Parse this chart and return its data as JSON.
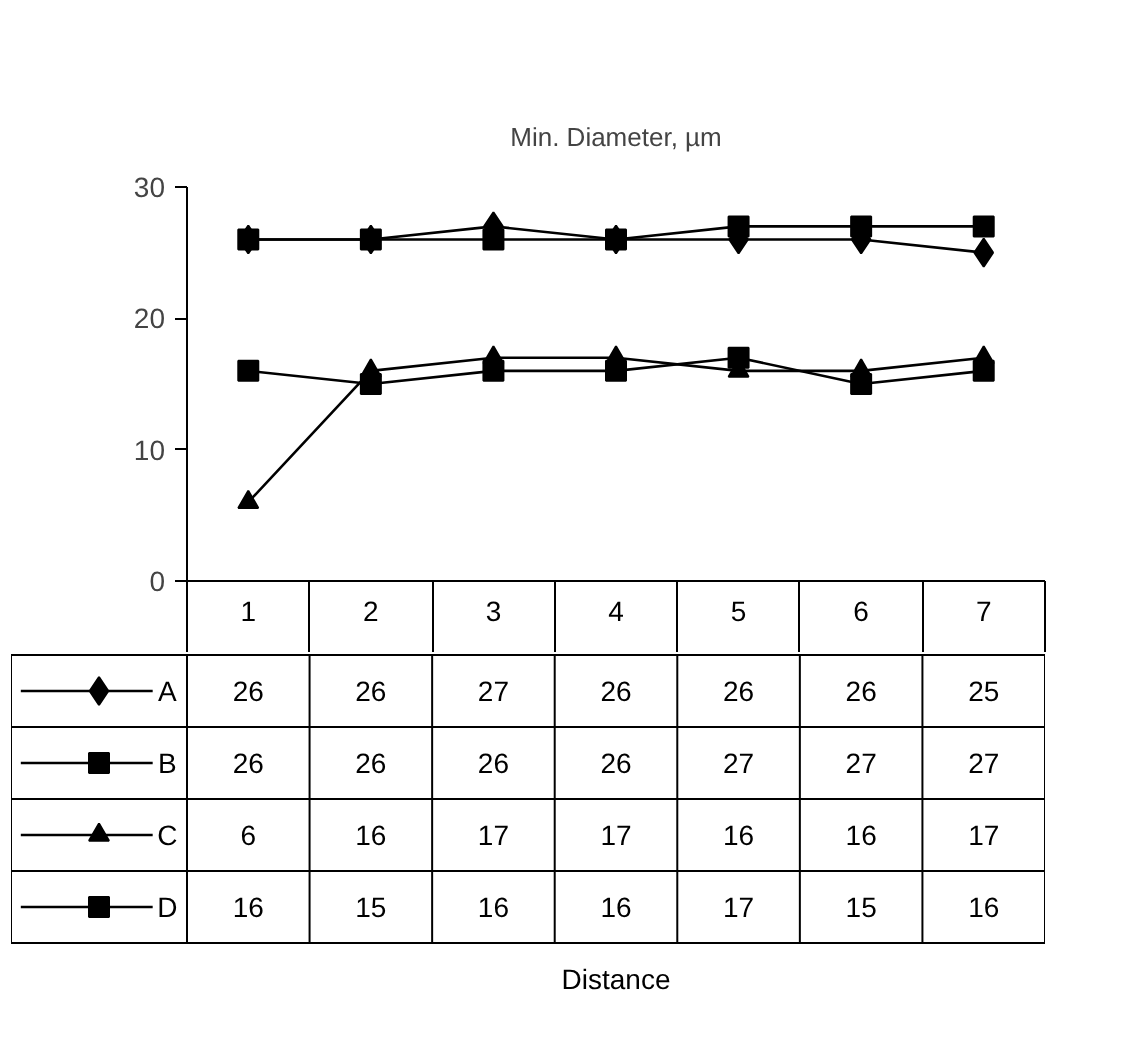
{
  "chart_data": {
    "type": "line",
    "title": "Min. Diameter, µm",
    "annotations": [
      "Distance"
    ],
    "categories": [
      "1",
      "2",
      "3",
      "4",
      "5",
      "6",
      "7"
    ],
    "ylim": [
      0,
      30
    ],
    "yticks": [
      0,
      10,
      20,
      30
    ],
    "grid": false,
    "legend": "bottom",
    "data_labels": true,
    "series": [
      {
        "name": "A",
        "color": "#000000",
        "marker": "diamond",
        "values": [
          26,
          26,
          27,
          26,
          26,
          26,
          25
        ]
      },
      {
        "name": "B",
        "color": "#000000",
        "marker": "square",
        "values": [
          26,
          26,
          26,
          26,
          27,
          27,
          27
        ]
      },
      {
        "name": "C",
        "color": "#000000",
        "marker": "triangle",
        "values": [
          6,
          16,
          17,
          17,
          16,
          16,
          17
        ]
      },
      {
        "name": "D",
        "color": "#000000",
        "marker": "square",
        "values": [
          16,
          15,
          16,
          16,
          17,
          15,
          16
        ]
      }
    ]
  }
}
